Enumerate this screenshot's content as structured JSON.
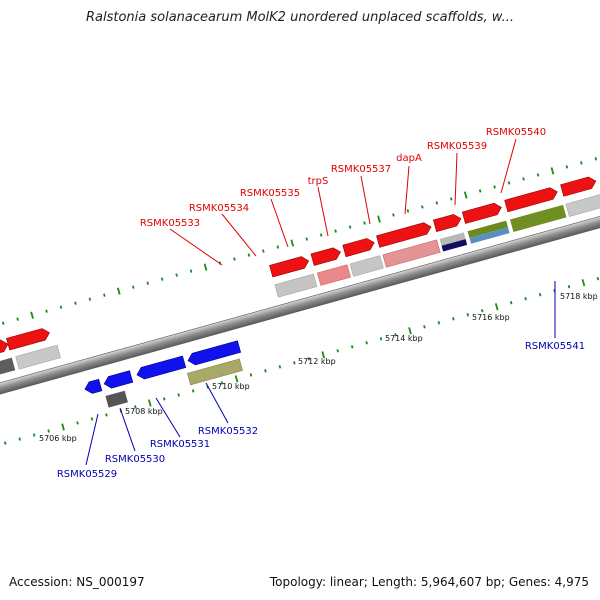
{
  "title": "Ralstonia solanacearum MolK2 unordered unplaced scaffolds, w...",
  "footer": {
    "accession": "Accession: NS_000197",
    "summary": "Topology: linear; Length: 5,964,607 bp; Genes: 4,975"
  },
  "colors": {
    "forward_label": "#e00000",
    "reverse_label": "#0000b0",
    "ruler_label": "#111111",
    "tick": "#1a8a1a",
    "backbone": "#9a9a9a"
  },
  "ruler_labels": [
    "5706 kbp",
    "5708 kbp",
    "5710 kbp",
    "5712 kbp",
    "5714 kbp",
    "5716 kbp",
    "5718 kbp"
  ],
  "forward_genes": [
    "RSMK05533",
    "RSMK05534",
    "RSMK05535",
    "trpS",
    "RSMK05537",
    "dapA",
    "RSMK05539",
    "RSMK05540"
  ],
  "reverse_genes": [
    "RSMK05529",
    "RSMK05530",
    "RSMK05531",
    "RSMK05532",
    "RSMK05541"
  ]
}
